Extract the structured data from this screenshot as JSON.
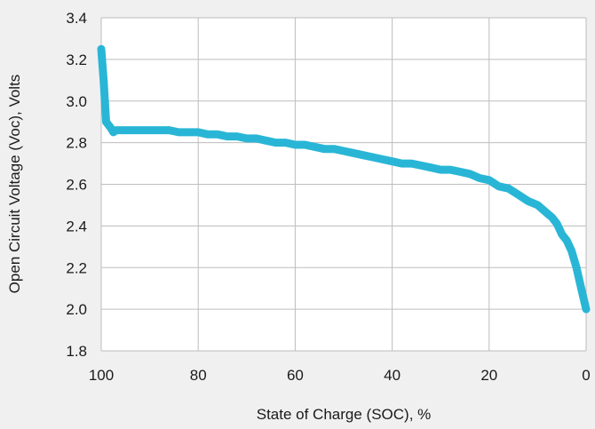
{
  "chart_data": {
    "type": "line",
    "title": "",
    "xlabel": "State of Charge (SOC), %",
    "ylabel": "Open Circuit Voltage (Voc), Volts",
    "xlim": [
      100,
      0
    ],
    "ylim": [
      1.8,
      3.4
    ],
    "x_ticks": [
      100,
      80,
      60,
      40,
      20,
      0
    ],
    "y_ticks": [
      "1.8",
      "2.0",
      "2.2",
      "2.4",
      "2.6",
      "2.8",
      "3.0",
      "3.2",
      "3.4"
    ],
    "grid": true,
    "colors": {
      "line": "#29b6d6",
      "grid": "#bdbdbd",
      "plot_bg": "#ffffff",
      "page_bg": "#f0f0f1"
    },
    "series": [
      {
        "x": [
          100,
          99.5,
          99,
          98,
          97.5,
          97,
          96,
          94,
          92,
          90,
          88,
          86,
          84,
          82,
          80,
          78,
          76,
          74,
          72,
          70,
          68,
          66,
          64,
          62,
          60,
          58,
          56,
          54,
          52,
          50,
          48,
          46,
          44,
          42,
          40,
          38,
          36,
          34,
          32,
          30,
          28,
          26,
          24,
          22,
          20,
          18,
          16,
          14,
          12,
          10,
          8,
          7,
          6,
          5,
          4,
          3,
          2,
          1,
          0
        ],
        "y": [
          3.25,
          3.1,
          2.9,
          2.87,
          2.85,
          2.86,
          2.86,
          2.86,
          2.86,
          2.86,
          2.86,
          2.86,
          2.85,
          2.85,
          2.85,
          2.84,
          2.84,
          2.83,
          2.83,
          2.82,
          2.82,
          2.81,
          2.8,
          2.8,
          2.79,
          2.79,
          2.78,
          2.77,
          2.77,
          2.76,
          2.75,
          2.74,
          2.73,
          2.72,
          2.71,
          2.7,
          2.7,
          2.69,
          2.68,
          2.67,
          2.67,
          2.66,
          2.65,
          2.63,
          2.62,
          2.59,
          2.58,
          2.55,
          2.52,
          2.5,
          2.46,
          2.44,
          2.41,
          2.36,
          2.33,
          2.28,
          2.2,
          2.1,
          2.0
        ]
      }
    ]
  }
}
